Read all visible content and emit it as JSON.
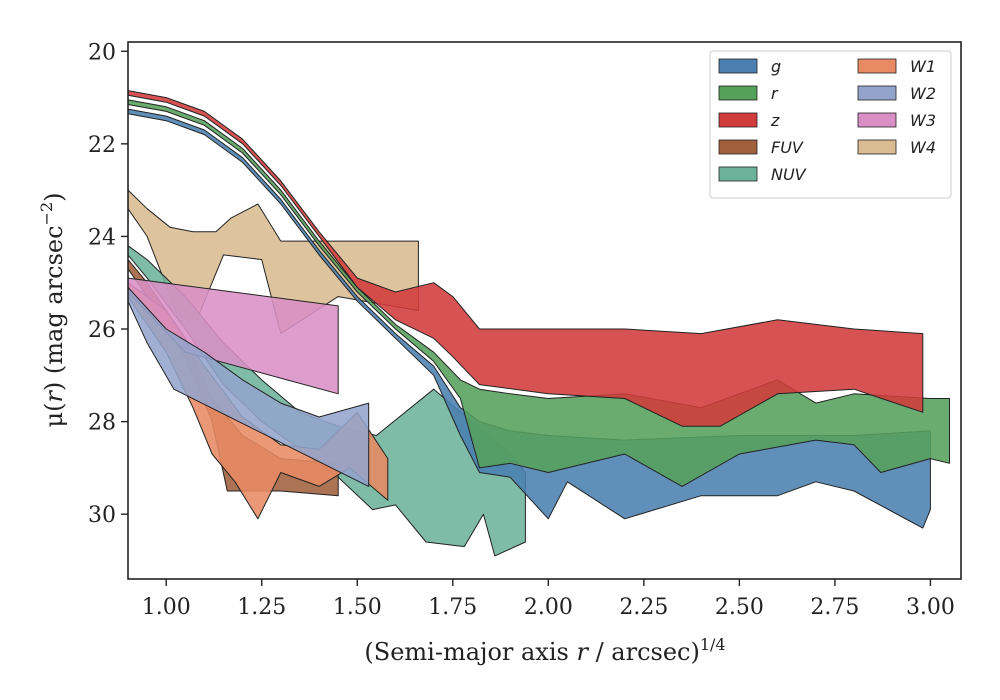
{
  "chart_data": {
    "type": "area",
    "xlabel": "(Semi-major axis r / arcsec)^1/4",
    "xlabel_parts": {
      "pre": "(Semi-major axis ",
      "var": "r",
      "post": " / arcsec)",
      "sup": "1/4"
    },
    "ylabel": "μ(r) (mag arcsec^−2)",
    "ylabel_parts": {
      "pre": "μ(",
      "var": "r",
      "post": ") (mag arcsec",
      "sup": "−2",
      "close": ")"
    },
    "xlim": [
      0.9,
      3.08
    ],
    "ylim": [
      31.4,
      19.8
    ],
    "y_inverted": true,
    "xticks": [
      1.0,
      1.25,
      1.5,
      1.75,
      2.0,
      2.25,
      2.5,
      2.75,
      3.0
    ],
    "xtick_labels": [
      "1.00",
      "1.25",
      "1.50",
      "1.75",
      "2.00",
      "2.25",
      "2.50",
      "2.75",
      "3.00"
    ],
    "yticks": [
      20,
      22,
      24,
      26,
      28,
      30
    ],
    "ytick_labels": [
      "20",
      "22",
      "24",
      "26",
      "28",
      "30"
    ],
    "grid": false,
    "legend": {
      "position": "top-right",
      "columns": 2,
      "order": [
        "g",
        "r",
        "z",
        "FUV",
        "NUV",
        "W1",
        "W2",
        "W3",
        "W4"
      ]
    },
    "series": [
      {
        "name": "W4",
        "color": "#d9bc91",
        "upper": [
          [
            0.9,
            23.0
          ],
          [
            0.95,
            23.4
          ],
          [
            1.01,
            23.8
          ],
          [
            1.07,
            23.9
          ],
          [
            1.13,
            23.9
          ],
          [
            1.17,
            23.6
          ],
          [
            1.24,
            23.3
          ],
          [
            1.3,
            24.1
          ],
          [
            1.66,
            24.1
          ]
        ],
        "lower": [
          [
            0.9,
            23.4
          ],
          [
            0.95,
            24.0
          ],
          [
            1.03,
            25.7
          ],
          [
            1.08,
            25.8
          ],
          [
            1.15,
            24.4
          ],
          [
            1.25,
            24.5
          ],
          [
            1.3,
            26.1
          ],
          [
            1.45,
            25.3
          ],
          [
            1.66,
            25.6
          ]
        ]
      },
      {
        "name": "NUV",
        "color": "#6db39c",
        "upper": [
          [
            0.9,
            24.2
          ],
          [
            0.95,
            24.5
          ],
          [
            1.05,
            25.3
          ],
          [
            1.15,
            26.3
          ],
          [
            1.25,
            27.1
          ],
          [
            1.35,
            27.8
          ],
          [
            1.45,
            28.1
          ],
          [
            1.55,
            28.3
          ],
          [
            1.7,
            27.3
          ],
          [
            1.8,
            28.0
          ],
          [
            1.9,
            28.7
          ],
          [
            1.94,
            29.1
          ]
        ],
        "lower": [
          [
            0.9,
            24.4
          ],
          [
            0.95,
            24.9
          ],
          [
            1.05,
            26.0
          ],
          [
            1.15,
            27.2
          ],
          [
            1.25,
            28.0
          ],
          [
            1.35,
            28.6
          ],
          [
            1.45,
            29.2
          ],
          [
            1.54,
            29.9
          ],
          [
            1.6,
            29.8
          ],
          [
            1.68,
            30.6
          ],
          [
            1.78,
            30.7
          ],
          [
            1.83,
            30.0
          ],
          [
            1.86,
            30.9
          ],
          [
            1.94,
            30.6
          ]
        ]
      },
      {
        "name": "FUV",
        "color": "#a0613c",
        "upper": [
          [
            0.9,
            24.5
          ],
          [
            0.95,
            25.0
          ],
          [
            1.05,
            26.2
          ],
          [
            1.12,
            27.5
          ],
          [
            1.2,
            28.3
          ],
          [
            1.3,
            28.8
          ],
          [
            1.45,
            28.9
          ]
        ],
        "lower": [
          [
            0.9,
            24.7
          ],
          [
            0.95,
            25.3
          ],
          [
            1.05,
            26.6
          ],
          [
            1.12,
            28.0
          ],
          [
            1.16,
            29.5
          ],
          [
            1.3,
            29.5
          ],
          [
            1.45,
            29.6
          ]
        ]
      },
      {
        "name": "W1",
        "color": "#e88a63",
        "upper": [
          [
            0.9,
            25.0
          ],
          [
            1.0,
            25.6
          ],
          [
            1.1,
            26.8
          ],
          [
            1.2,
            27.9
          ],
          [
            1.3,
            28.5
          ],
          [
            1.4,
            28.6
          ],
          [
            1.5,
            27.8
          ],
          [
            1.58,
            28.8
          ]
        ],
        "lower": [
          [
            0.9,
            25.3
          ],
          [
            1.0,
            26.5
          ],
          [
            1.07,
            27.7
          ],
          [
            1.12,
            28.7
          ],
          [
            1.18,
            29.3
          ],
          [
            1.24,
            30.1
          ],
          [
            1.3,
            29.1
          ],
          [
            1.4,
            29.4
          ],
          [
            1.48,
            29.0
          ],
          [
            1.58,
            29.7
          ]
        ]
      },
      {
        "name": "W3",
        "color": "#d98fc5",
        "upper": [
          [
            0.9,
            24.9
          ],
          [
            1.45,
            25.5
          ]
        ],
        "lower": [
          [
            0.9,
            25.2
          ],
          [
            0.97,
            25.8
          ],
          [
            1.05,
            26.5
          ],
          [
            1.45,
            27.4
          ]
        ]
      },
      {
        "name": "W2",
        "color": "#93a4cc",
        "upper": [
          [
            0.9,
            25.1
          ],
          [
            1.0,
            26.0
          ],
          [
            1.1,
            26.5
          ],
          [
            1.2,
            27.1
          ],
          [
            1.3,
            27.6
          ],
          [
            1.4,
            27.9
          ],
          [
            1.53,
            27.6
          ]
        ],
        "lower": [
          [
            0.9,
            25.4
          ],
          [
            0.95,
            26.3
          ],
          [
            1.02,
            27.3
          ],
          [
            1.53,
            29.4
          ]
        ]
      },
      {
        "name": "g",
        "color": "#4a7fb0",
        "upper": [
          [
            0.9,
            21.25
          ],
          [
            1.0,
            21.4
          ],
          [
            1.1,
            21.7
          ],
          [
            1.2,
            22.3
          ],
          [
            1.3,
            23.2
          ],
          [
            1.4,
            24.3
          ],
          [
            1.5,
            25.3
          ],
          [
            1.6,
            26.1
          ],
          [
            1.7,
            26.8
          ],
          [
            1.77,
            27.7
          ],
          [
            1.82,
            28.0
          ],
          [
            1.9,
            28.2
          ],
          [
            2.0,
            28.3
          ],
          [
            2.2,
            28.4
          ],
          [
            2.5,
            28.3
          ],
          [
            2.8,
            28.3
          ],
          [
            3.0,
            28.2
          ]
        ],
        "lower": [
          [
            0.9,
            21.35
          ],
          [
            1.0,
            21.5
          ],
          [
            1.1,
            21.8
          ],
          [
            1.2,
            22.4
          ],
          [
            1.3,
            23.3
          ],
          [
            1.4,
            24.4
          ],
          [
            1.5,
            25.4
          ],
          [
            1.6,
            26.2
          ],
          [
            1.7,
            27.0
          ],
          [
            1.77,
            28.3
          ],
          [
            1.82,
            29.1
          ],
          [
            1.9,
            29.2
          ],
          [
            2.0,
            30.1
          ],
          [
            2.05,
            29.3
          ],
          [
            2.2,
            30.1
          ],
          [
            2.4,
            29.6
          ],
          [
            2.6,
            29.6
          ],
          [
            2.7,
            29.3
          ],
          [
            2.8,
            29.5
          ],
          [
            2.98,
            30.3
          ],
          [
            3.0,
            29.9
          ]
        ]
      },
      {
        "name": "r",
        "color": "#55a05b",
        "upper": [
          [
            0.9,
            21.05
          ],
          [
            1.0,
            21.2
          ],
          [
            1.1,
            21.5
          ],
          [
            1.2,
            22.1
          ],
          [
            1.3,
            23.0
          ],
          [
            1.4,
            24.1
          ],
          [
            1.5,
            25.1
          ],
          [
            1.6,
            25.9
          ],
          [
            1.7,
            26.5
          ],
          [
            1.77,
            27.1
          ],
          [
            1.82,
            27.3
          ],
          [
            1.9,
            27.4
          ],
          [
            2.0,
            27.5
          ],
          [
            2.2,
            27.4
          ],
          [
            2.4,
            27.7
          ],
          [
            2.6,
            27.1
          ],
          [
            2.7,
            27.6
          ],
          [
            2.8,
            27.4
          ],
          [
            3.0,
            27.5
          ],
          [
            3.05,
            27.5
          ]
        ],
        "lower": [
          [
            0.9,
            21.15
          ],
          [
            1.0,
            21.3
          ],
          [
            1.1,
            21.6
          ],
          [
            1.2,
            22.2
          ],
          [
            1.3,
            23.1
          ],
          [
            1.4,
            24.2
          ],
          [
            1.5,
            25.2
          ],
          [
            1.6,
            26.0
          ],
          [
            1.7,
            26.7
          ],
          [
            1.77,
            27.5
          ],
          [
            1.82,
            29.0
          ],
          [
            1.9,
            28.9
          ],
          [
            2.0,
            29.1
          ],
          [
            2.2,
            28.7
          ],
          [
            2.35,
            29.4
          ],
          [
            2.5,
            28.7
          ],
          [
            2.7,
            28.4
          ],
          [
            2.8,
            28.5
          ],
          [
            2.87,
            29.1
          ],
          [
            3.0,
            28.8
          ],
          [
            3.05,
            28.9
          ]
        ]
      },
      {
        "name": "z",
        "color": "#d13b3b",
        "upper": [
          [
            0.9,
            20.85
          ],
          [
            1.0,
            21.0
          ],
          [
            1.1,
            21.3
          ],
          [
            1.2,
            21.9
          ],
          [
            1.3,
            22.8
          ],
          [
            1.4,
            23.9
          ],
          [
            1.5,
            24.9
          ],
          [
            1.6,
            25.2
          ],
          [
            1.7,
            25.0
          ],
          [
            1.75,
            25.3
          ],
          [
            1.82,
            26.0
          ],
          [
            2.0,
            26.0
          ],
          [
            2.2,
            26.0
          ],
          [
            2.4,
            26.1
          ],
          [
            2.6,
            25.8
          ],
          [
            2.8,
            26.0
          ],
          [
            2.98,
            26.1
          ]
        ],
        "lower": [
          [
            0.9,
            20.95
          ],
          [
            1.0,
            21.1
          ],
          [
            1.1,
            21.4
          ],
          [
            1.2,
            22.0
          ],
          [
            1.3,
            22.9
          ],
          [
            1.4,
            24.0
          ],
          [
            1.5,
            25.1
          ],
          [
            1.6,
            25.8
          ],
          [
            1.7,
            26.2
          ],
          [
            1.75,
            26.6
          ],
          [
            1.82,
            27.2
          ],
          [
            2.0,
            27.4
          ],
          [
            2.2,
            27.5
          ],
          [
            2.35,
            28.1
          ],
          [
            2.45,
            28.1
          ],
          [
            2.6,
            27.4
          ],
          [
            2.8,
            27.3
          ],
          [
            2.98,
            27.8
          ]
        ]
      }
    ]
  }
}
